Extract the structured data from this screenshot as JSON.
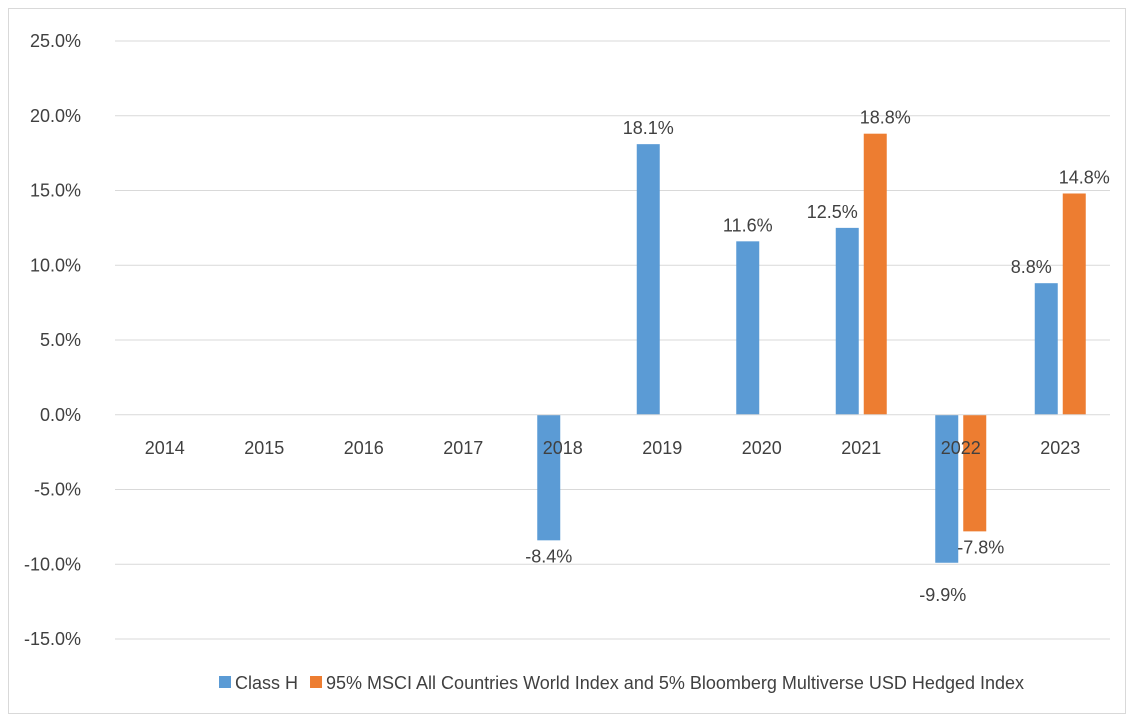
{
  "chart_data": {
    "type": "bar",
    "categories": [
      "2014",
      "2015",
      "2016",
      "2017",
      "2018",
      "2019",
      "2020",
      "2021",
      "2022",
      "2023"
    ],
    "series": [
      {
        "name": "Class H",
        "color": "#5b9bd5",
        "values": [
          null,
          null,
          null,
          null,
          -8.4,
          18.1,
          11.6,
          12.5,
          -9.9,
          8.8
        ]
      },
      {
        "name": "95% MSCI All Countries World Index and 5% Bloomberg Multiverse USD Hedged Index",
        "color": "#ed7d31",
        "values": [
          null,
          null,
          null,
          null,
          null,
          null,
          null,
          18.8,
          -7.8,
          14.8
        ]
      }
    ],
    "ylim": [
      -15,
      25
    ],
    "ytick_step": 5,
    "ytick_labels": [
      "25.0%",
      "20.0%",
      "15.0%",
      "10.0%",
      "5.0%",
      "0.0%",
      "-5.0%",
      "-10.0%",
      "-15.0%"
    ],
    "value_format_suffix": "%",
    "grid": true,
    "legend_position": "bottom",
    "title": "",
    "xlabel": "",
    "ylabel": ""
  }
}
